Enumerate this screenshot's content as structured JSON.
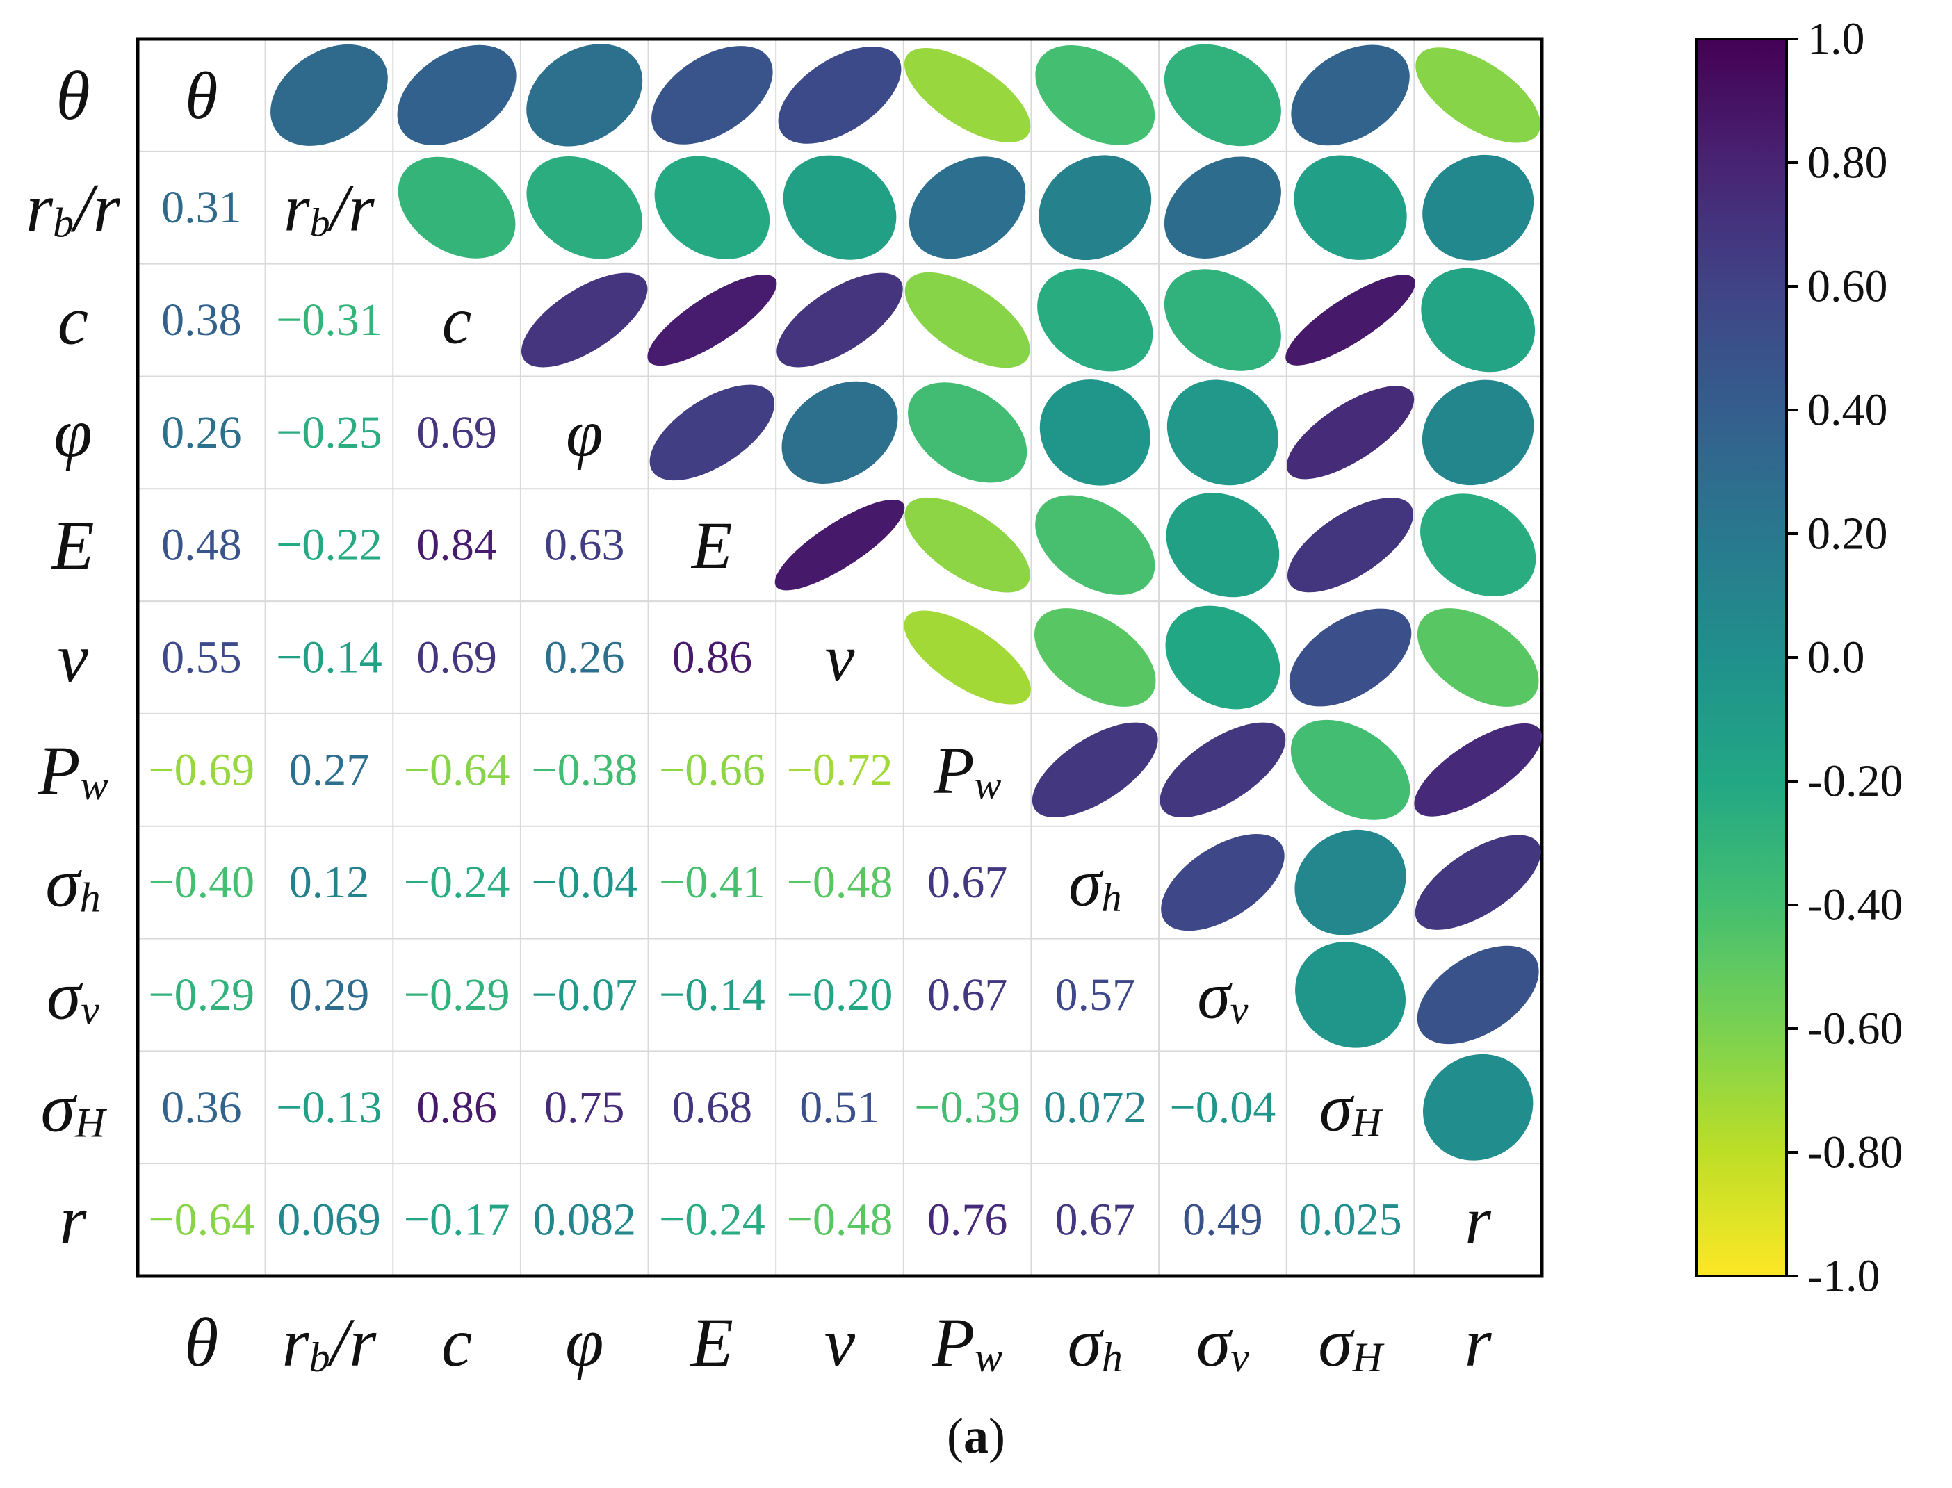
{
  "chart_data": {
    "type": "heatmap",
    "subtype": "correlation-matrix-ellipse",
    "variables": [
      {
        "base": "θ",
        "sub": ""
      },
      {
        "base": "r",
        "sub": "b",
        "suffix": "/r"
      },
      {
        "base": "c",
        "sub": ""
      },
      {
        "base": "φ",
        "sub": ""
      },
      {
        "base": "E",
        "sub": ""
      },
      {
        "base": "v",
        "sub": ""
      },
      {
        "base": "P",
        "sub": "w"
      },
      {
        "base": "σ",
        "sub": "h"
      },
      {
        "base": "σ",
        "sub": "v"
      },
      {
        "base": "σ",
        "sub": "H"
      },
      {
        "base": "r",
        "sub": ""
      }
    ],
    "matrix": [
      [
        1,
        0.31,
        0.38,
        0.26,
        0.48,
        0.55,
        -0.69,
        -0.4,
        -0.29,
        0.36,
        -0.64
      ],
      [
        0.31,
        1,
        -0.31,
        -0.25,
        -0.22,
        -0.14,
        0.27,
        0.12,
        0.29,
        -0.13,
        0.069
      ],
      [
        0.38,
        -0.31,
        1,
        0.69,
        0.84,
        0.69,
        -0.64,
        -0.24,
        -0.29,
        0.86,
        -0.17
      ],
      [
        0.26,
        -0.25,
        0.69,
        1,
        0.63,
        0.26,
        -0.38,
        -0.04,
        -0.07,
        0.75,
        0.082
      ],
      [
        0.48,
        -0.22,
        0.84,
        0.63,
        1,
        0.86,
        -0.66,
        -0.41,
        -0.14,
        0.68,
        -0.24
      ],
      [
        0.55,
        -0.14,
        0.69,
        0.26,
        0.86,
        1,
        -0.72,
        -0.48,
        -0.2,
        0.51,
        -0.48
      ],
      [
        -0.69,
        0.27,
        -0.64,
        -0.38,
        -0.66,
        -0.72,
        1,
        0.67,
        0.67,
        -0.39,
        0.76
      ],
      [
        -0.4,
        0.12,
        -0.24,
        -0.04,
        -0.41,
        -0.48,
        0.67,
        1,
        0.57,
        0.072,
        0.67
      ],
      [
        -0.29,
        0.29,
        -0.29,
        -0.07,
        -0.14,
        -0.2,
        0.67,
        0.57,
        1,
        -0.04,
        0.49
      ],
      [
        0.36,
        -0.13,
        0.86,
        0.75,
        0.68,
        0.51,
        -0.39,
        0.072,
        -0.04,
        1,
        0.025
      ],
      [
        -0.64,
        0.069,
        -0.17,
        0.082,
        -0.24,
        -0.48,
        0.76,
        0.67,
        0.49,
        0.025,
        1
      ]
    ],
    "lower_labels": [
      [],
      [
        "0.31"
      ],
      [
        "0.38",
        "−0.31"
      ],
      [
        "0.26",
        "−0.25",
        "0.69"
      ],
      [
        "0.48",
        "−0.22",
        "0.84",
        "0.63"
      ],
      [
        "0.55",
        "−0.14",
        "0.69",
        "0.26",
        "0.86"
      ],
      [
        "−0.69",
        "0.27",
        "−0.64",
        "−0.38",
        "−0.66",
        "−0.72"
      ],
      [
        "−0.40",
        "0.12",
        "−0.24",
        "−0.04",
        "−0.41",
        "−0.48",
        "0.67"
      ],
      [
        "−0.29",
        "0.29",
        "−0.29",
        "−0.07",
        "−0.14",
        "−0.20",
        "0.67",
        "0.57"
      ],
      [
        "0.36",
        "−0.13",
        "0.86",
        "0.75",
        "0.68",
        "0.51",
        "−0.39",
        "0.072",
        "−0.04"
      ],
      [
        "−0.64",
        "0.069",
        "−0.17",
        "0.082",
        "−0.24",
        "−0.48",
        "0.76",
        "0.67",
        "0.49",
        "0.025"
      ]
    ],
    "upper_display": "ellipses",
    "lower_display": "numbers",
    "diagonal_display": "variable-names",
    "colorbar": {
      "colormap": "viridis",
      "orientation": "vertical",
      "placement": "right",
      "range": [
        -1.0,
        1.0
      ],
      "ticks": [
        {
          "value": 1.0,
          "label": "1.0"
        },
        {
          "value": 0.8,
          "label": "0.80"
        },
        {
          "value": 0.6,
          "label": "0.60"
        },
        {
          "value": 0.4,
          "label": "0.40"
        },
        {
          "value": 0.2,
          "label": "0.20"
        },
        {
          "value": 0.0,
          "label": "0.0"
        },
        {
          "value": -0.2,
          "label": "-0.20"
        },
        {
          "value": -0.4,
          "label": "-0.40"
        },
        {
          "value": -0.6,
          "label": "-0.60"
        },
        {
          "value": -0.8,
          "label": "-0.80"
        },
        {
          "value": -1.0,
          "label": "-1.0"
        }
      ]
    },
    "grid": true,
    "caption": "(a)"
  }
}
